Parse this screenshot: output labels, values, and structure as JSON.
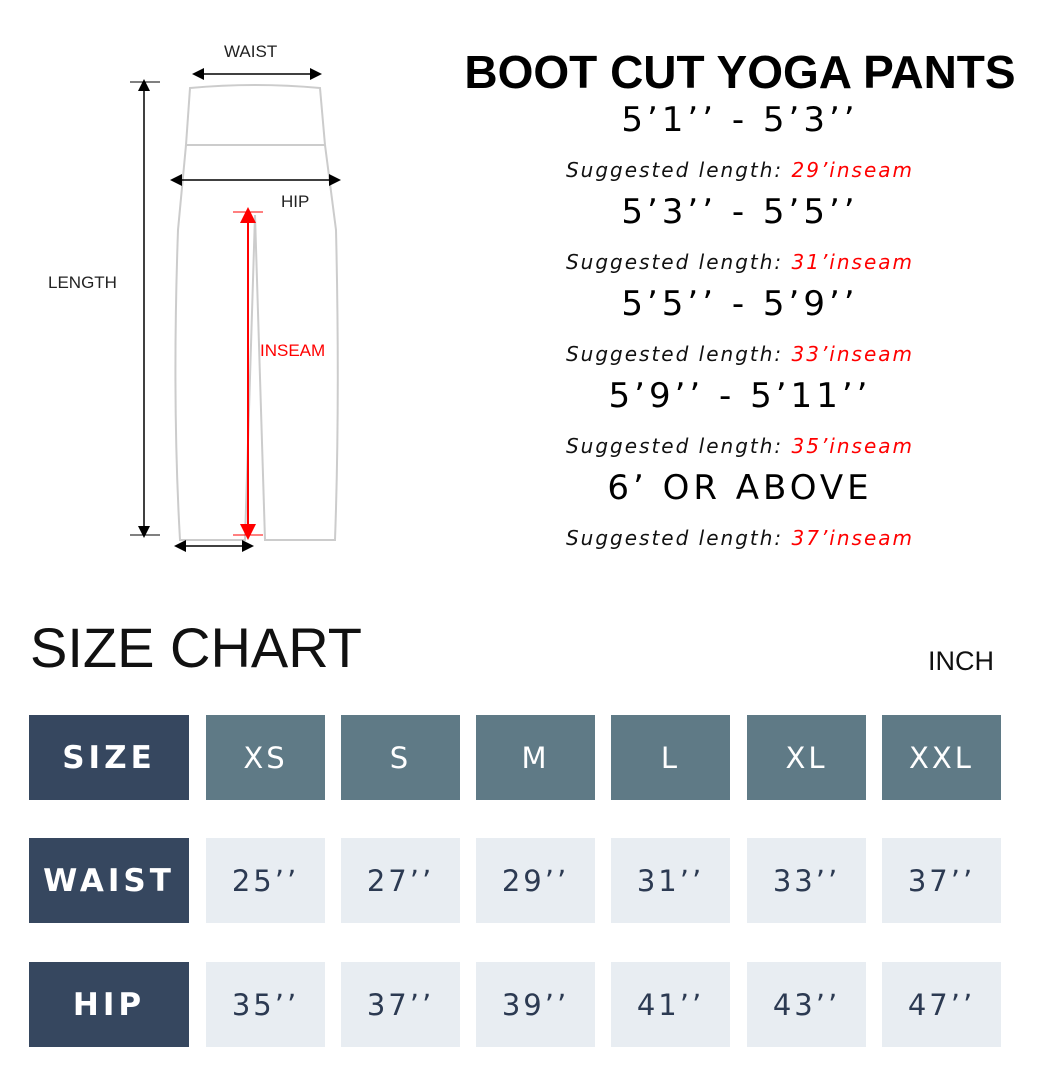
{
  "diagram": {
    "waist": "WAIST",
    "hip": "HIP",
    "length": "LENGTH",
    "inseam": "INSEAM"
  },
  "title": "BOOT CUT YOGA PANTS",
  "heights": [
    {
      "range": "5’1’’ - 5’3’’",
      "prefix": "Suggested length: ",
      "inseam": "29’inseam"
    },
    {
      "range": "5’3’’ - 5’5’’",
      "prefix": "Suggested length: ",
      "inseam": "31’inseam"
    },
    {
      "range": "5’5’’ - 5’9’’",
      "prefix": "Suggested length: ",
      "inseam": "33’inseam"
    },
    {
      "range": "5’9’’ - 5’11’’",
      "prefix": "Suggested length: ",
      "inseam": "35’inseam"
    },
    {
      "range": "6’ OR ABOVE",
      "prefix": "Suggested length: ",
      "inseam": "37’inseam"
    }
  ],
  "size_chart": {
    "title": "SIZE CHART",
    "unit": "INCH",
    "rows": [
      {
        "label": "SIZE",
        "values": [
          "XS",
          "S",
          "M",
          "L",
          "XL",
          "XXL"
        ]
      },
      {
        "label": "WAIST",
        "values": [
          "25’’",
          "27’’",
          "29’’",
          "31’’",
          "33’’",
          "37’’"
        ]
      },
      {
        "label": "HIP",
        "values": [
          "35’’",
          "37’’",
          "39’’",
          "41’’",
          "43’’",
          "47’’"
        ]
      }
    ]
  },
  "colors": {
    "row_header": "#36475f",
    "size_header": "#5f7a86",
    "value_cell": "#e8edf2",
    "accent": "#ff0000"
  }
}
